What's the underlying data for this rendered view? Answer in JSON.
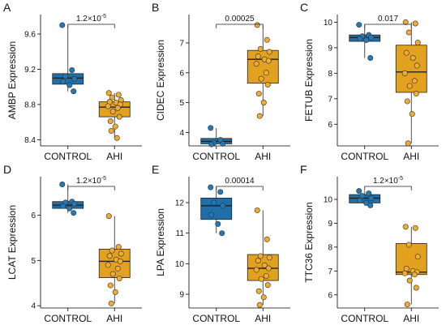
{
  "colors": {
    "control": "#1f6fa9",
    "ahi": "#e2a11f",
    "point_control": "#2378b5",
    "point_ahi": "#f0ac2e"
  },
  "chart_data": [
    {
      "type": "box",
      "panel": "A",
      "ylabel": "AMBP Expression",
      "categories": [
        "CONTROL",
        "AHI"
      ],
      "ylim": [
        8.33,
        9.82
      ],
      "yticks": [
        8.4,
        8.8,
        9.2,
        9.6
      ],
      "pvalue": {
        "base": "1.2×10",
        "exp": "-5"
      },
      "series": [
        {
          "name": "CONTROL",
          "box": {
            "whisker_low": 8.95,
            "q1": 9.03,
            "median": 9.1,
            "q3": 9.15,
            "whisker_high": 9.7
          },
          "points": [
            9.7,
            9.19,
            9.12,
            9.09,
            9.06,
            9.02,
            8.95
          ]
        },
        {
          "name": "AHI",
          "box": {
            "whisker_low": 8.42,
            "q1": 8.66,
            "median": 8.77,
            "q3": 8.83,
            "whisker_high": 8.93
          },
          "points": [
            8.93,
            8.91,
            8.88,
            8.85,
            8.83,
            8.82,
            8.8,
            8.78,
            8.76,
            8.72,
            8.66,
            8.61,
            8.55,
            8.5,
            8.42
          ]
        }
      ]
    },
    {
      "type": "box",
      "panel": "B",
      "ylabel": "CIDEC Expression",
      "categories": [
        "CONTROL",
        "AHI"
      ],
      "ylim": [
        3.55,
        7.95
      ],
      "yticks": [
        4,
        5,
        6,
        7
      ],
      "pvalue": {
        "base": "0.00025",
        "exp": ""
      },
      "series": [
        {
          "name": "CONTROL",
          "box": {
            "whisker_low": 3.6,
            "q1": 3.62,
            "median": 3.7,
            "q3": 3.8,
            "whisker_high": 4.15
          },
          "points": [
            4.15,
            3.75,
            3.65,
            3.62,
            3.6
          ]
        },
        {
          "name": "AHI",
          "box": {
            "whisker_low": 4.55,
            "q1": 5.65,
            "median": 6.45,
            "q3": 6.75,
            "whisker_high": 7.6
          },
          "points": [
            7.6,
            7.1,
            6.8,
            6.7,
            6.55,
            6.45,
            6.4,
            6.3,
            6.0,
            5.8,
            5.6,
            5.3,
            5.0,
            4.55
          ]
        }
      ]
    },
    {
      "type": "box",
      "panel": "C",
      "ylabel": "FETUB Expression",
      "categories": [
        "CONTROL",
        "AHI"
      ],
      "ylim": [
        5.15,
        10.3
      ],
      "yticks": [
        6,
        7,
        8,
        9,
        10
      ],
      "pvalue": {
        "base": "0.017",
        "exp": ""
      },
      "series": [
        {
          "name": "CONTROL",
          "box": {
            "whisker_low": 8.6,
            "q1": 9.25,
            "median": 9.4,
            "q3": 9.5,
            "whisker_high": 9.9
          },
          "points": [
            9.9,
            9.5,
            9.45,
            9.4,
            9.35,
            9.3,
            8.6
          ]
        },
        {
          "name": "AHI",
          "box": {
            "whisker_low": 5.25,
            "q1": 7.25,
            "median": 8.05,
            "q3": 9.1,
            "whisker_high": 10.0
          },
          "points": [
            10.0,
            9.95,
            9.6,
            9.2,
            8.8,
            8.6,
            8.3,
            8.0,
            7.7,
            7.5,
            7.2,
            6.9,
            6.4,
            5.25
          ]
        }
      ]
    },
    {
      "type": "box",
      "panel": "D",
      "ylabel": "LCAT Expression",
      "categories": [
        "CONTROL",
        "AHI"
      ],
      "ylim": [
        3.95,
        6.85
      ],
      "yticks": [
        4,
        5,
        6
      ],
      "pvalue": {
        "base": "1.2×10",
        "exp": "-5"
      },
      "series": [
        {
          "name": "CONTROL",
          "box": {
            "whisker_low": 6.05,
            "q1": 6.15,
            "median": 6.22,
            "q3": 6.3,
            "whisker_high": 6.68
          },
          "points": [
            6.68,
            6.3,
            6.28,
            6.25,
            6.2,
            6.15,
            6.05
          ]
        },
        {
          "name": "AHI",
          "box": {
            "whisker_low": 4.05,
            "q1": 4.62,
            "median": 4.98,
            "q3": 5.25,
            "whisker_high": 5.98
          },
          "points": [
            5.98,
            5.3,
            5.22,
            5.15,
            5.1,
            5.02,
            4.98,
            4.9,
            4.82,
            4.7,
            4.6,
            4.45,
            4.3,
            4.05
          ]
        }
      ]
    },
    {
      "type": "box",
      "panel": "E",
      "ylabel": "LPA Expression",
      "categories": [
        "CONTROL",
        "AHI"
      ],
      "ylim": [
        8.55,
        12.85
      ],
      "yticks": [
        9,
        10,
        11,
        12
      ],
      "pvalue": {
        "base": "0.00014",
        "exp": ""
      },
      "series": [
        {
          "name": "CONTROL",
          "box": {
            "whisker_low": 11.0,
            "q1": 11.45,
            "median": 11.9,
            "q3": 12.15,
            "whisker_high": 12.5
          },
          "points": [
            12.5,
            12.35,
            12.0,
            11.9,
            11.6,
            11.3,
            11.0
          ]
        },
        {
          "name": "AHI",
          "box": {
            "whisker_low": 8.65,
            "q1": 9.45,
            "median": 9.85,
            "q3": 10.3,
            "whisker_high": 11.75
          },
          "points": [
            11.75,
            10.8,
            10.25,
            10.2,
            10.1,
            9.95,
            9.85,
            9.8,
            9.6,
            9.5,
            9.3,
            9.1,
            8.9,
            8.65
          ]
        }
      ]
    },
    {
      "type": "box",
      "panel": "F",
      "ylabel": "TTC36 Expression",
      "categories": [
        "CONTROL",
        "AHI"
      ],
      "ylim": [
        5.45,
        10.95
      ],
      "yticks": [
        6,
        7,
        8,
        9,
        10
      ],
      "pvalue": {
        "base": "1.2×10",
        "exp": "-5"
      },
      "series": [
        {
          "name": "CONTROL",
          "box": {
            "whisker_low": 9.75,
            "q1": 9.85,
            "median": 10.05,
            "q3": 10.2,
            "whisker_high": 10.35
          },
          "points": [
            10.35,
            10.25,
            10.15,
            10.05,
            9.95,
            9.85,
            9.75
          ]
        },
        {
          "name": "AHI",
          "box": {
            "whisker_low": 5.6,
            "q1": 6.85,
            "median": 6.95,
            "q3": 8.15,
            "whisker_high": 8.85
          },
          "points": [
            8.85,
            8.8,
            8.1,
            7.6,
            7.1,
            7.0,
            6.95,
            6.9,
            6.85,
            6.6,
            6.3,
            5.6
          ]
        }
      ]
    }
  ]
}
